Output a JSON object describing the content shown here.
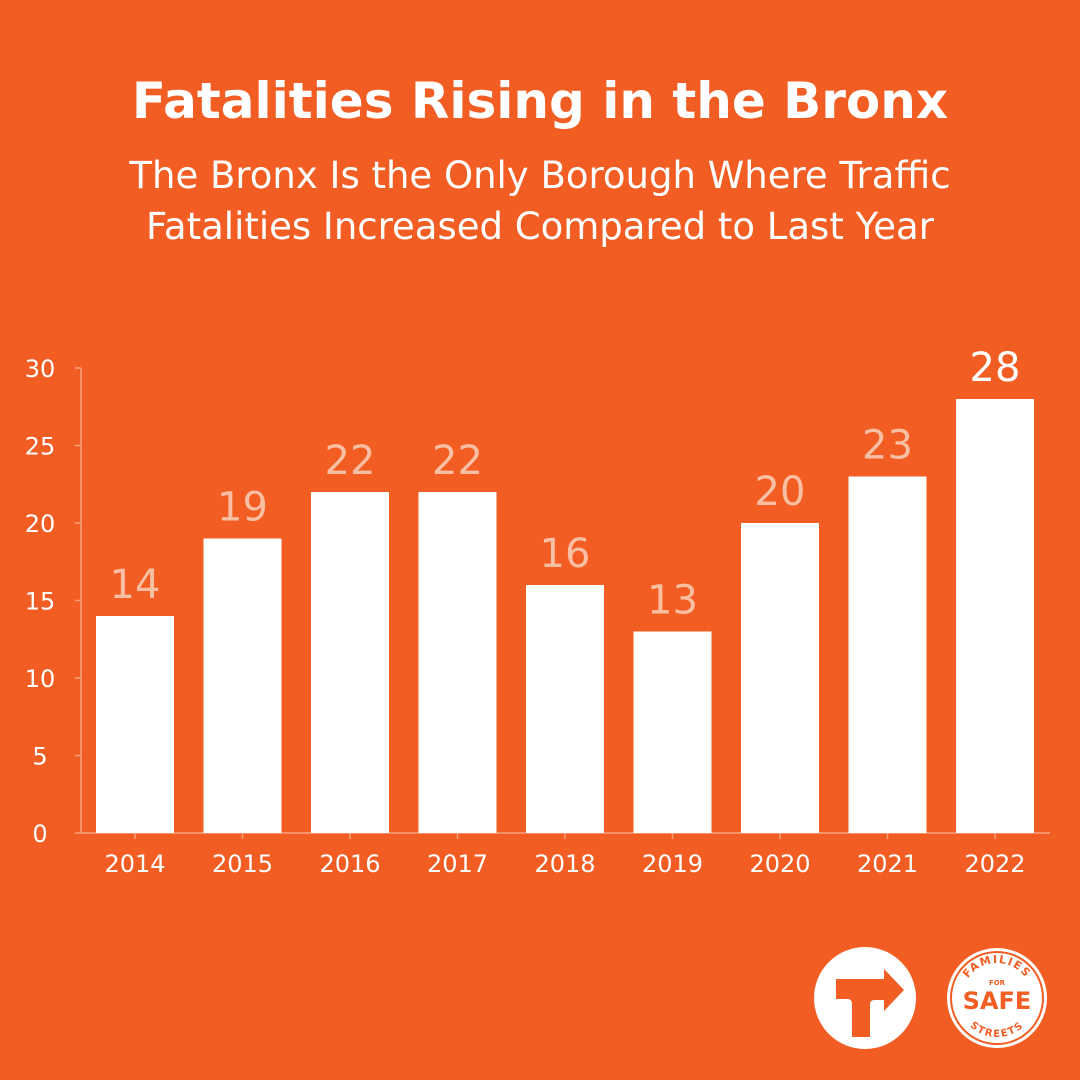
{
  "header": {
    "title": "Fatalities Rising in the Bronx",
    "subtitle_line1": "The Bronx Is the Only Borough Where Traffic",
    "subtitle_line2": "Fatalities Increased Compared to Last Year"
  },
  "colors": {
    "background": "#F15D22",
    "bar": "#FFFFFF",
    "value_label": "#F9BFA3",
    "highlight_label": "#FFFFFF",
    "axis": "#F7A27C"
  },
  "chart_data": {
    "type": "bar",
    "title": "Fatalities Rising in the Bronx",
    "xlabel": "",
    "ylabel": "",
    "categories": [
      "2014",
      "2015",
      "2016",
      "2017",
      "2018",
      "2019",
      "2020",
      "2021",
      "2022"
    ],
    "values": [
      14,
      19,
      22,
      22,
      16,
      13,
      20,
      23,
      28
    ],
    "highlight_index": 8,
    "ylim": [
      0,
      30
    ],
    "yticks": [
      0,
      5,
      10,
      15,
      20,
      25,
      30
    ],
    "grid": false,
    "legend": "none"
  },
  "logos": {
    "arrow_logo": "transportation-alternatives-arrow-icon",
    "fss_logo": "families-for-safe-streets-badge",
    "fss_top": "FAMILIES",
    "fss_for": "FOR",
    "fss_main": "SAFE",
    "fss_bottom": "STREETS"
  }
}
